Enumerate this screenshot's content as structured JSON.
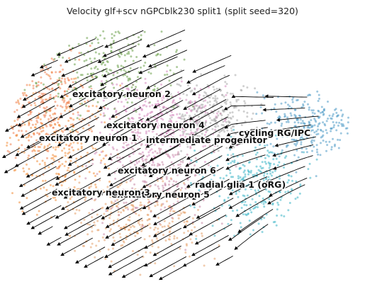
{
  "chart_data": {
    "type": "scatter",
    "title": "Velocity glf+scv nGPCblk230 split1 (split seed=320)",
    "xlabel": "",
    "ylabel": "",
    "axes_visible": false,
    "grid": false,
    "legend": "on data",
    "overlay": "velocity streamlines with arrowheads",
    "clusters": [
      {
        "name": "excitatory neuron 2",
        "color": "#6ca04a"
      },
      {
        "name": "excitatory neuron 4",
        "color": "#d58bbf"
      },
      {
        "name": "excitatory neuron 1",
        "color": "#f28e3b"
      },
      {
        "name": "intermediate progenitor",
        "color": "#aaaaaa"
      },
      {
        "name": "cycling RG/IPC",
        "color": "#4f9ac7"
      },
      {
        "name": "excitatory neuron 6",
        "color": "#c98aa8"
      },
      {
        "name": "radial glia 1 (oRG)",
        "color": "#3bb5c6"
      },
      {
        "name": "excitatory neuron 5",
        "color": "#e6a06a"
      },
      {
        "name": "excitatory neuron 3",
        "color": "#f08050"
      }
    ]
  }
}
